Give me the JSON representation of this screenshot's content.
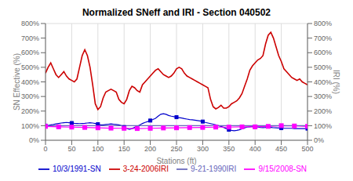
{
  "chart_data": {
    "type": "line",
    "title": "Normalized SNeff and IRI - Section 040502",
    "xlabel": "Stations (ft)",
    "ylabel": "SN Effective (%)",
    "y2label": "IRI (%)",
    "xlim": [
      0,
      500
    ],
    "xticks": [
      0,
      50,
      100,
      150,
      200,
      250,
      300,
      350,
      400,
      450,
      500
    ],
    "ylim": [
      0,
      800
    ],
    "yticks": [
      {
        "value": 0,
        "label": "0%"
      },
      {
        "value": 100,
        "label": "100%"
      },
      {
        "value": 200,
        "label": "200%"
      },
      {
        "value": 300,
        "label": "300%"
      },
      {
        "value": 400,
        "label": "400%"
      },
      {
        "value": 500,
        "label": "500%"
      },
      {
        "value": 600,
        "label": "600%"
      },
      {
        "value": 700,
        "label": "700%"
      },
      {
        "value": 800,
        "label": "800%"
      }
    ],
    "y2lim": [
      0,
      800
    ],
    "y2ticks": [
      {
        "value": 0,
        "label": "0%"
      },
      {
        "value": 100,
        "label": "100%"
      },
      {
        "value": 200,
        "label": "200%"
      },
      {
        "value": 300,
        "label": "300%"
      },
      {
        "value": 400,
        "label": "400%"
      },
      {
        "value": 500,
        "label": "500%"
      },
      {
        "value": 600,
        "label": "600%"
      },
      {
        "value": 700,
        "label": "700%"
      },
      {
        "value": 800,
        "label": "800%"
      }
    ],
    "grid": true,
    "legend": "bottom",
    "series": [
      {
        "name": "10/3/1991-SN",
        "color": "#0000CC",
        "marker": "square",
        "x": [
          0,
          5,
          10,
          15,
          20,
          25,
          30,
          35,
          40,
          45,
          50,
          55,
          60,
          65,
          70,
          75,
          80,
          85,
          90,
          95,
          100,
          105,
          110,
          115,
          120,
          125,
          130,
          135,
          140,
          145,
          150,
          155,
          160,
          165,
          170,
          175,
          180,
          185,
          190,
          195,
          200,
          205,
          210,
          215,
          220,
          225,
          230,
          235,
          240,
          245,
          250,
          255,
          260,
          265,
          270,
          275,
          280,
          285,
          290,
          295,
          300,
          305,
          310,
          315,
          320,
          325,
          330,
          335,
          340,
          345,
          350,
          355,
          360,
          365,
          370,
          375,
          380,
          385,
          390,
          395,
          400,
          405,
          410,
          415,
          420,
          425,
          430,
          435,
          440,
          445,
          450,
          455,
          460,
          465,
          470,
          475,
          480,
          485,
          490,
          495,
          500
        ],
        "values": [
          100,
          102,
          105,
          108,
          112,
          115,
          118,
          120,
          122,
          120,
          118,
          116,
          115,
          114,
          115,
          116,
          118,
          120,
          118,
          115,
          110,
          105,
          105,
          108,
          110,
          112,
          110,
          108,
          105,
          100,
          90,
          82,
          75,
          80,
          88,
          95,
          105,
          115,
          122,
          128,
          135,
          142,
          150,
          165,
          178,
          182,
          178,
          170,
          165,
          162,
          158,
          155,
          152,
          148,
          145,
          142,
          140,
          138,
          135,
          132,
          128,
          122,
          118,
          114,
          110,
          105,
          100,
          95,
          88,
          80,
          72,
          68,
          65,
          68,
          72,
          78,
          85,
          90,
          92,
          94,
          92,
          90,
          88,
          87,
          88,
          90,
          88,
          86,
          85,
          84,
          83,
          82,
          82,
          82,
          82,
          80,
          80,
          80,
          80,
          80,
          80
        ]
      },
      {
        "name": "9/15/2008-SN",
        "color": "#FF00FF",
        "marker": "square",
        "x": [
          0,
          25,
          50,
          75,
          100,
          125,
          150,
          175,
          200,
          225,
          250,
          275,
          300,
          325,
          350,
          375,
          400,
          425,
          450,
          475,
          500
        ],
        "values": [
          95,
          92,
          90,
          88,
          85,
          83,
          82,
          80,
          82,
          84,
          85,
          87,
          88,
          90,
          90,
          92,
          92,
          95,
          100,
          98,
          95
        ]
      },
      {
        "name": "9-21-1990IRI",
        "color": "#6666BB",
        "x": [
          0,
          5,
          10,
          15,
          20,
          25,
          30,
          35,
          40,
          45,
          50,
          55,
          60,
          65,
          70,
          75,
          80,
          85,
          90,
          95,
          100,
          105,
          110,
          115,
          120,
          125,
          130,
          135,
          140,
          145,
          150,
          155,
          160,
          165,
          170,
          175,
          180,
          185,
          190,
          195,
          200,
          205,
          210,
          215,
          220,
          225,
          230,
          235,
          240,
          245,
          250,
          255,
          260,
          265,
          270,
          275,
          280,
          285,
          290,
          295,
          300,
          305,
          310,
          315,
          320,
          325,
          330,
          335,
          340,
          345,
          350,
          355,
          360,
          365,
          370,
          375,
          380,
          385,
          390,
          395,
          400,
          405,
          410,
          415,
          420,
          425,
          430,
          435,
          440,
          445,
          450,
          455,
          460,
          465,
          470,
          475,
          480,
          485,
          490,
          495,
          500
        ],
        "values": [
          100,
          100,
          100,
          100,
          100,
          100,
          100,
          100,
          100,
          100,
          100,
          100,
          100,
          100,
          100,
          100,
          100,
          100,
          100,
          100,
          100,
          100,
          100,
          100,
          100,
          100,
          100,
          100,
          100,
          100,
          100,
          100,
          100,
          100,
          100,
          100,
          100,
          100,
          100,
          100,
          100,
          100,
          100,
          100,
          100,
          100,
          100,
          100,
          100,
          100,
          100,
          100,
          100,
          100,
          100,
          100,
          100,
          100,
          100,
          100,
          100,
          100,
          100,
          100,
          100,
          100,
          100,
          100,
          100,
          100,
          100,
          100,
          100,
          100,
          100,
          100,
          100,
          100,
          100,
          100,
          100,
          100,
          100,
          100,
          100,
          100,
          100,
          100,
          100,
          100,
          100,
          100,
          100,
          100,
          100,
          100,
          100,
          100,
          100,
          100,
          100
        ]
      },
      {
        "name": "3-24-2006IRI",
        "color": "#CC0000",
        "axis": "y2",
        "x": [
          0,
          5,
          10,
          15,
          20,
          25,
          30,
          35,
          40,
          45,
          50,
          55,
          60,
          65,
          70,
          75,
          80,
          85,
          90,
          95,
          100,
          105,
          110,
          115,
          120,
          125,
          130,
          135,
          140,
          145,
          150,
          155,
          160,
          165,
          170,
          175,
          180,
          185,
          190,
          195,
          200,
          205,
          210,
          215,
          220,
          225,
          230,
          235,
          240,
          245,
          250,
          255,
          260,
          265,
          270,
          275,
          280,
          285,
          290,
          295,
          300,
          305,
          310,
          315,
          320,
          325,
          330,
          335,
          340,
          345,
          350,
          355,
          360,
          365,
          370,
          375,
          380,
          385,
          390,
          395,
          400,
          405,
          410,
          415,
          420,
          425,
          430,
          435,
          440,
          445,
          450,
          455,
          460,
          465,
          470,
          475,
          480,
          485,
          490,
          495,
          500
        ],
        "values": [
          460,
          500,
          530,
          490,
          450,
          430,
          450,
          470,
          440,
          420,
          410,
          400,
          420,
          500,
          580,
          620,
          580,
          500,
          380,
          250,
          210,
          230,
          290,
          330,
          340,
          350,
          340,
          330,
          280,
          260,
          250,
          280,
          340,
          370,
          360,
          340,
          330,
          380,
          400,
          420,
          440,
          460,
          480,
          490,
          470,
          450,
          440,
          430,
          440,
          460,
          490,
          500,
          490,
          460,
          440,
          430,
          420,
          410,
          400,
          390,
          380,
          370,
          360,
          280,
          230,
          215,
          225,
          240,
          220,
          220,
          230,
          250,
          260,
          270,
          290,
          320,
          370,
          420,
          480,
          510,
          530,
          550,
          560,
          580,
          660,
          720,
          740,
          700,
          640,
          580,
          540,
          490,
          470,
          450,
          430,
          420,
          410,
          420,
          400,
          390,
          380
        ]
      }
    ]
  }
}
